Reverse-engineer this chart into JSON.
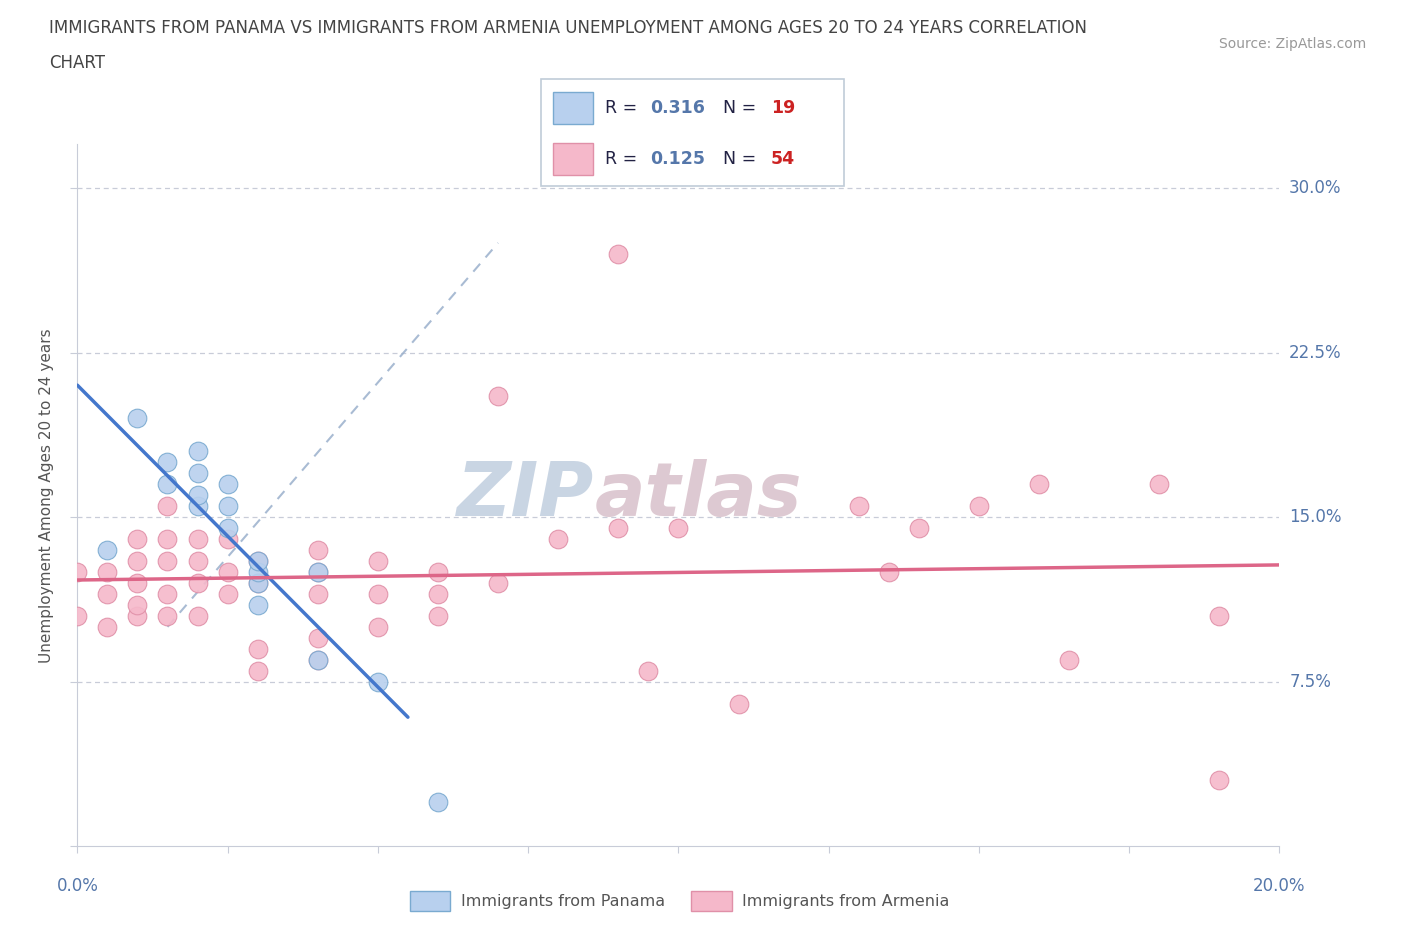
{
  "title_line1": "IMMIGRANTS FROM PANAMA VS IMMIGRANTS FROM ARMENIA UNEMPLOYMENT AMONG AGES 20 TO 24 YEARS CORRELATION",
  "title_line2": "CHART",
  "source": "Source: ZipAtlas.com",
  "ylabel": "Unemployment Among Ages 20 to 24 years",
  "x_range": [
    0.0,
    0.2
  ],
  "y_range": [
    0.0,
    0.32
  ],
  "y_ticks": [
    0.0,
    0.075,
    0.15,
    0.225,
    0.3
  ],
  "y_tick_labels_right": [
    "",
    "7.5%",
    "15.0%",
    "22.5%",
    "30.0%"
  ],
  "x_tick_label_left": "0.0%",
  "x_tick_label_right": "20.0%",
  "panama_R": "0.316",
  "panama_N": "19",
  "armenia_R": "0.125",
  "armenia_N": "54",
  "panama_fill_color": "#b8d0ee",
  "armenia_fill_color": "#f5b8ca",
  "panama_edge_color": "#7aaad0",
  "armenia_edge_color": "#e090a8",
  "panama_line_color": "#4477cc",
  "armenia_line_color": "#dd6688",
  "dashed_line_color": "#9ab0cc",
  "grid_color": "#c8ccd8",
  "watermark_color": "#ccd8e8",
  "label_color": "#5577aa",
  "title_color": "#444444",
  "legend_border_color": "#c0ccd8",
  "source_color": "#999999",
  "panama_x": [
    0.005,
    0.01,
    0.015,
    0.015,
    0.02,
    0.02,
    0.02,
    0.02,
    0.025,
    0.025,
    0.025,
    0.03,
    0.03,
    0.03,
    0.03,
    0.04,
    0.04,
    0.05,
    0.06
  ],
  "panama_y": [
    0.135,
    0.195,
    0.165,
    0.175,
    0.155,
    0.16,
    0.17,
    0.18,
    0.145,
    0.155,
    0.165,
    0.12,
    0.125,
    0.13,
    0.11,
    0.085,
    0.125,
    0.075,
    0.02
  ],
  "armenia_x": [
    0.0,
    0.0,
    0.005,
    0.005,
    0.005,
    0.01,
    0.01,
    0.01,
    0.01,
    0.01,
    0.015,
    0.015,
    0.015,
    0.015,
    0.015,
    0.02,
    0.02,
    0.02,
    0.02,
    0.025,
    0.025,
    0.025,
    0.03,
    0.03,
    0.03,
    0.03,
    0.04,
    0.04,
    0.04,
    0.04,
    0.04,
    0.05,
    0.05,
    0.05,
    0.06,
    0.06,
    0.06,
    0.07,
    0.07,
    0.08,
    0.09,
    0.09,
    0.095,
    0.1,
    0.11,
    0.13,
    0.135,
    0.14,
    0.15,
    0.16,
    0.165,
    0.18,
    0.19,
    0.19
  ],
  "armenia_y": [
    0.105,
    0.125,
    0.1,
    0.115,
    0.125,
    0.105,
    0.11,
    0.12,
    0.13,
    0.14,
    0.105,
    0.115,
    0.13,
    0.14,
    0.155,
    0.105,
    0.12,
    0.13,
    0.14,
    0.115,
    0.125,
    0.14,
    0.08,
    0.09,
    0.12,
    0.13,
    0.085,
    0.095,
    0.115,
    0.125,
    0.135,
    0.1,
    0.115,
    0.13,
    0.105,
    0.115,
    0.125,
    0.12,
    0.205,
    0.14,
    0.145,
    0.27,
    0.08,
    0.145,
    0.065,
    0.155,
    0.125,
    0.145,
    0.155,
    0.165,
    0.085,
    0.165,
    0.105,
    0.03
  ]
}
